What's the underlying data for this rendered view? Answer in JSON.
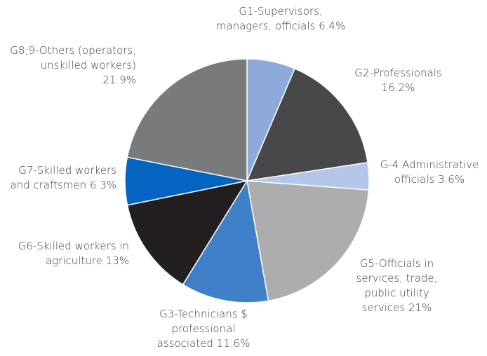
{
  "chart_data": {
    "type": "pie",
    "categories": [
      "G1-Supervisors, managers, officials",
      "G2-Professionals",
      "G-4 Administrative officials",
      "G5-Officials in services, trade, public utility services",
      "G3-Technicians $ professional associated",
      "G6-Skilled workers in agriculture",
      "G7-Skilled workers and craftsmen",
      "G8;9-Others (operators, unskilled workers)"
    ],
    "values": [
      6.4,
      16.2,
      3.6,
      21,
      11.6,
      13,
      6.3,
      21.9
    ],
    "value_labels": [
      "6.4%",
      "16.2%",
      "3.6%",
      "21%",
      "11.6%",
      "13%",
      "6.3%",
      "21.9%"
    ],
    "colors": [
      "#8eaadb",
      "#47484a",
      "#b4c6e7",
      "#adadaf",
      "#3f80c8",
      "#231f20",
      "#0563c1",
      "#797a7c"
    ]
  }
}
